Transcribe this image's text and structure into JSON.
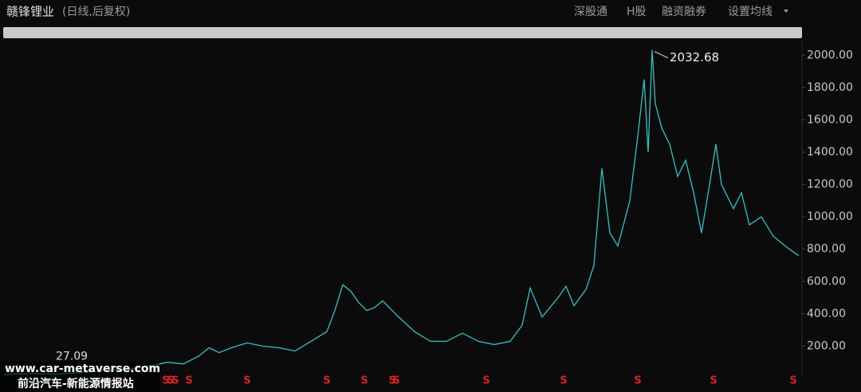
{
  "chart_data": {
    "type": "line",
    "title": "赣锋锂业",
    "subtitle": "(日线,后复权)",
    "menu": [
      "深股通",
      "H股",
      "融资融券",
      "设置均线"
    ],
    "x": [
      5,
      40,
      70,
      100,
      130,
      160,
      190,
      210,
      230,
      250,
      262,
      275,
      290,
      310,
      330,
      350,
      370,
      390,
      410,
      420,
      430,
      440,
      450,
      460,
      470,
      480,
      490,
      500,
      520,
      540,
      560,
      580,
      600,
      620,
      640,
      655,
      665,
      680,
      700,
      710,
      720,
      735,
      745,
      755,
      765,
      775,
      790,
      800,
      808,
      813,
      818,
      822,
      830,
      840,
      850,
      860,
      870,
      880,
      890,
      898,
      905,
      920,
      930,
      940,
      955,
      970,
      990,
      1002
    ],
    "series": [
      {
        "name": "赣锋锂业",
        "color": "#2ac6c8",
        "values": [
          25,
          30,
          27,
          35,
          50,
          55,
          80,
          100,
          90,
          140,
          190,
          160,
          190,
          220,
          200,
          190,
          170,
          230,
          290,
          420,
          580,
          540,
          470,
          420,
          440,
          480,
          430,
          380,
          290,
          230,
          230,
          280,
          230,
          210,
          230,
          330,
          560,
          380,
          500,
          570,
          450,
          550,
          700,
          1300,
          900,
          820,
          1100,
          1500,
          1850,
          1400,
          2032.68,
          1700,
          1550,
          1450,
          1250,
          1350,
          1150,
          900,
          1200,
          1450,
          1200,
          1050,
          1150,
          950,
          1000,
          880,
          800,
          760
        ]
      }
    ],
    "xlim": [
      0,
      1005
    ],
    "ylim": [
      10,
      2095
    ],
    "yticks": [
      {
        "value": 200,
        "label": "200.00"
      },
      {
        "value": 400,
        "label": "400.00"
      },
      {
        "value": 600,
        "label": "600.00"
      },
      {
        "value": 800,
        "label": "800.00"
      },
      {
        "value": 1000,
        "label": "1000.00"
      },
      {
        "value": 1200,
        "label": "1200.00"
      },
      {
        "value": 1400,
        "label": "1400.00"
      },
      {
        "value": 1600,
        "label": "1600.00"
      },
      {
        "value": 1800,
        "label": "1800.00"
      },
      {
        "value": 2000,
        "label": "2000.00"
      }
    ],
    "annotations": [
      {
        "x": 818,
        "y": 2032.68,
        "label": "2032.68"
      },
      {
        "x": 70,
        "y": 27.09,
        "label": "27.09"
      }
    ],
    "markers": [
      {
        "x": 208,
        "label": "S"
      },
      {
        "x": 214,
        "label": "S"
      },
      {
        "x": 220,
        "label": "S"
      },
      {
        "x": 237,
        "label": "S"
      },
      {
        "x": 310,
        "label": "S"
      },
      {
        "x": 410,
        "label": "S"
      },
      {
        "x": 457,
        "label": "S"
      },
      {
        "x": 492,
        "label": "S"
      },
      {
        "x": 497,
        "label": "S"
      },
      {
        "x": 610,
        "label": "S"
      },
      {
        "x": 707,
        "label": "S"
      },
      {
        "x": 800,
        "label": "S"
      },
      {
        "x": 895,
        "label": "S"
      },
      {
        "x": 995,
        "label": "S"
      }
    ],
    "watermark": [
      "www.car-metaverse.com",
      "前沿汽车-新能源情报站"
    ]
  }
}
